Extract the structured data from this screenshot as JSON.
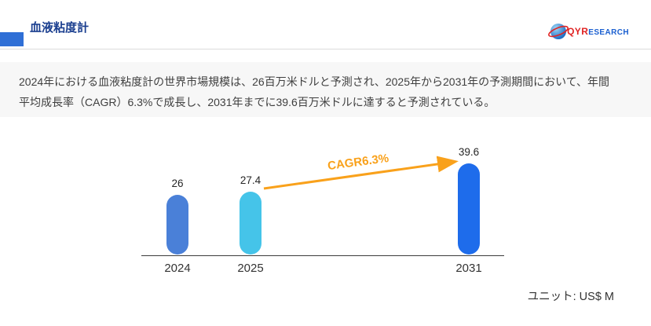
{
  "header": {
    "title": "血液粘度計",
    "logo": {
      "primary": "QYR",
      "secondary": "ESEARCH"
    }
  },
  "description": "2024年における血液粘度計の世界市場規模は、26百万米ドルと予測され、2025年から2031年の予測期間において、年間平均成長率（CAGR）6.3%で成長し、2031年までに39.6百万米ドルに達すると予測されている。",
  "chart_data": {
    "type": "bar",
    "title": "",
    "xlabel": "",
    "ylabel": "",
    "categories": [
      "2024",
      "2025",
      "2031"
    ],
    "values": [
      26,
      27.4,
      39.6
    ],
    "value_labels": [
      "26",
      "27.4",
      "39.6"
    ],
    "bar_colors": [
      "#4a80d8",
      "#45c4e9",
      "#1e6ceb"
    ],
    "annotation": "CAGR6.3%",
    "annotation_color": "#f9a11b",
    "ylim": [
      0,
      40
    ],
    "grid": false,
    "legend": false,
    "unit": "ユニット: US$ M"
  }
}
